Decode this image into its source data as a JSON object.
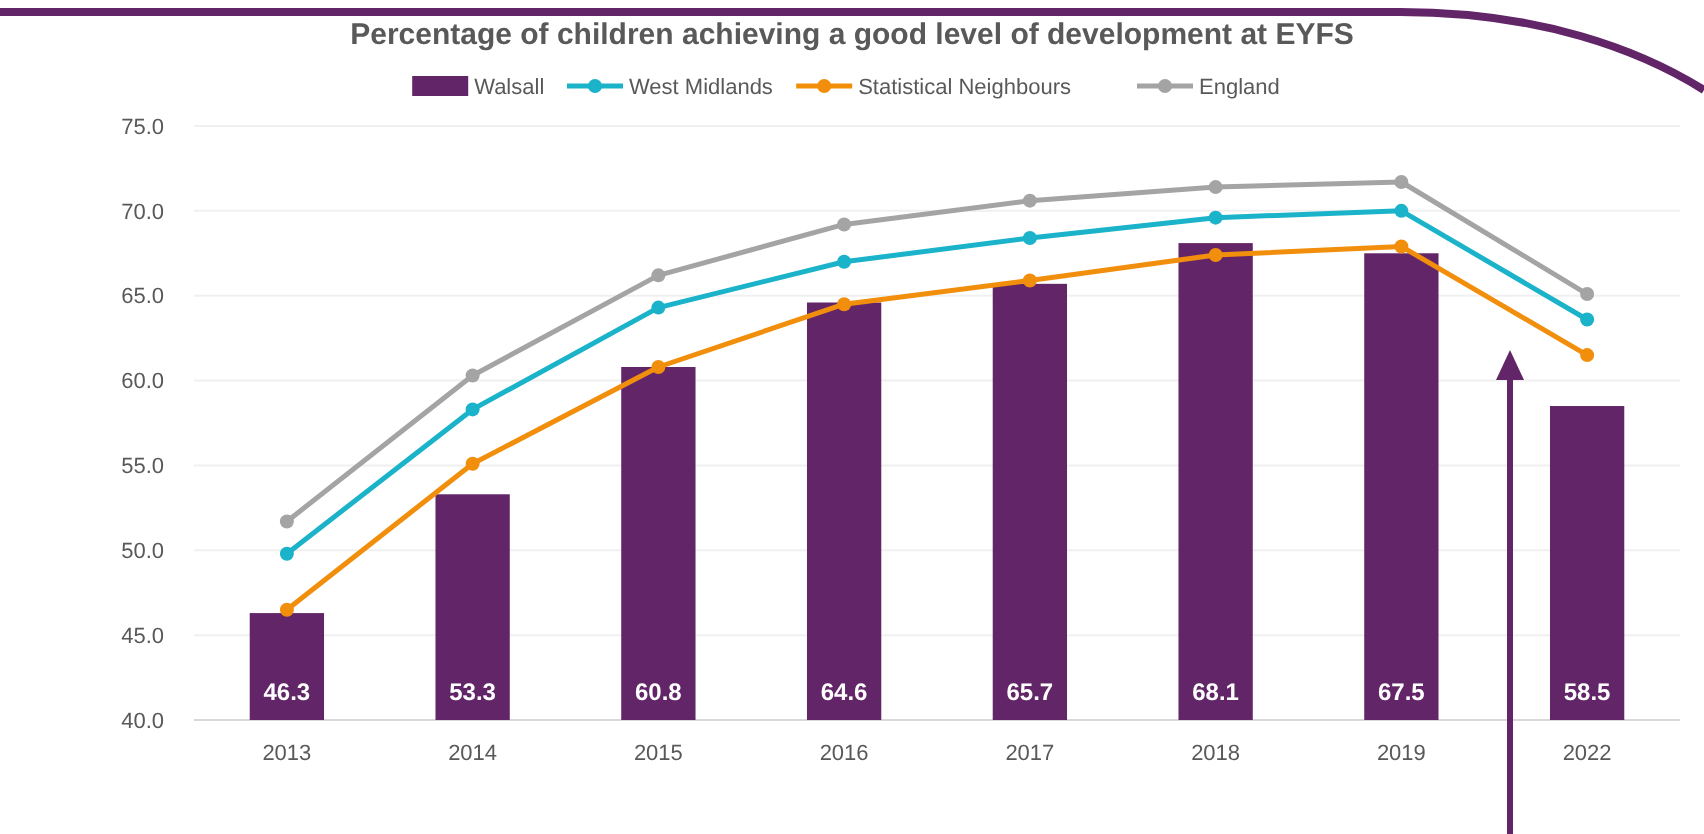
{
  "chart_data": {
    "type": "bar",
    "title": "Percentage of children achieving a good level of development at EYFS",
    "categories": [
      "2013",
      "2014",
      "2015",
      "2016",
      "2017",
      "2018",
      "2019",
      "2022"
    ],
    "series": [
      {
        "name": "Walsall",
        "color": "#622567",
        "values": [
          46.3,
          53.3,
          60.8,
          64.6,
          65.7,
          68.1,
          67.5,
          58.5
        ],
        "value_labels": [
          "46.3",
          "53.3",
          "60.8",
          "64.6",
          "65.7",
          "68.1",
          "67.5",
          "58.5"
        ]
      },
      {
        "name": "West Midlands",
        "type": "line",
        "color": "#1bb3c9",
        "values": [
          49.8,
          58.3,
          64.3,
          67.0,
          68.4,
          69.6,
          70.0,
          63.6
        ]
      },
      {
        "name": "Statistical Neighbours",
        "type": "line",
        "color": "#f18f0c",
        "values": [
          46.5,
          55.1,
          60.8,
          64.5,
          65.9,
          67.4,
          67.9,
          61.5
        ]
      },
      {
        "name": "England",
        "type": "line",
        "color": "#a4a4a4",
        "values": [
          51.7,
          60.3,
          66.2,
          69.2,
          70.6,
          71.4,
          71.7,
          65.1
        ]
      }
    ],
    "ylim": [
      40,
      75
    ],
    "yticks": [
      {
        "value": 40,
        "label": "40.0"
      },
      {
        "value": 45,
        "label": "45.0"
      },
      {
        "value": 50,
        "label": "50.0"
      },
      {
        "value": 55,
        "label": "55.0"
      },
      {
        "value": 60,
        "label": "60.0"
      },
      {
        "value": 65,
        "label": "65.0"
      },
      {
        "value": 70,
        "label": "70.0"
      },
      {
        "value": 75,
        "label": "75.0"
      }
    ],
    "grid": "y",
    "legend": "top",
    "marker": "circle",
    "line_style": "solid"
  }
}
